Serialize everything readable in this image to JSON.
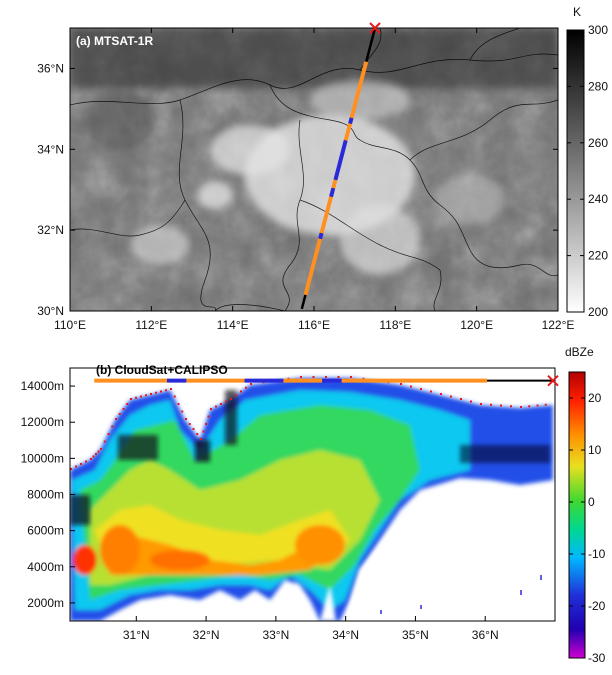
{
  "chart_data": [
    {
      "type": "heatmap",
      "panel": "a",
      "title": "(a) MTSAT-1R",
      "x_ticks": [
        "110°E",
        "112°E",
        "114°E",
        "116°E",
        "118°E",
        "120°E",
        "122°E"
      ],
      "x_values": [
        110,
        112,
        114,
        116,
        118,
        120,
        122
      ],
      "y_ticks": [
        "30°N",
        "32°N",
        "34°N",
        "36°N"
      ],
      "y_values": [
        30,
        32,
        34,
        36
      ],
      "xlim": [
        110,
        122
      ],
      "ylim": [
        30,
        37
      ],
      "colorbar": {
        "unit": "K",
        "ticks": [
          "200",
          "220",
          "240",
          "260",
          "280",
          "300"
        ],
        "range": [
          200,
          300
        ],
        "colors": [
          "#ffffff",
          "#000000"
        ]
      },
      "track": {
        "start": [
          115.7,
          30.05
        ],
        "end": [
          117.5,
          37.0
        ],
        "marker": "x",
        "marker_color": "#e51b1b"
      }
    },
    {
      "type": "heatmap",
      "panel": "b",
      "title": "(b) CloudSat+CALIPSO",
      "x_ticks": [
        "31°N",
        "32°N",
        "33°N",
        "34°N",
        "35°N",
        "36°N"
      ],
      "x_values": [
        31,
        32,
        33,
        34,
        35,
        36
      ],
      "y_ticks": [
        "2000m",
        "4000m",
        "6000m",
        "8000m",
        "10000m",
        "12000m",
        "14000m"
      ],
      "y_values": [
        2000,
        4000,
        6000,
        8000,
        10000,
        12000,
        14000
      ],
      "xlim": [
        30.05,
        37.0
      ],
      "ylim": [
        1000,
        15000
      ],
      "colorbar": {
        "unit": "dBZe",
        "ticks": [
          "20",
          "10",
          "0",
          "-10",
          "-20",
          "-30"
        ],
        "range": [
          -30,
          25
        ],
        "colors": [
          "#b000c0",
          "#2020d0",
          "#00b0ff",
          "#00d890",
          "#30d830",
          "#e0e020",
          "#ff9000",
          "#ff2000",
          "#c00000"
        ]
      },
      "marker_color": "#e51b1b"
    }
  ]
}
